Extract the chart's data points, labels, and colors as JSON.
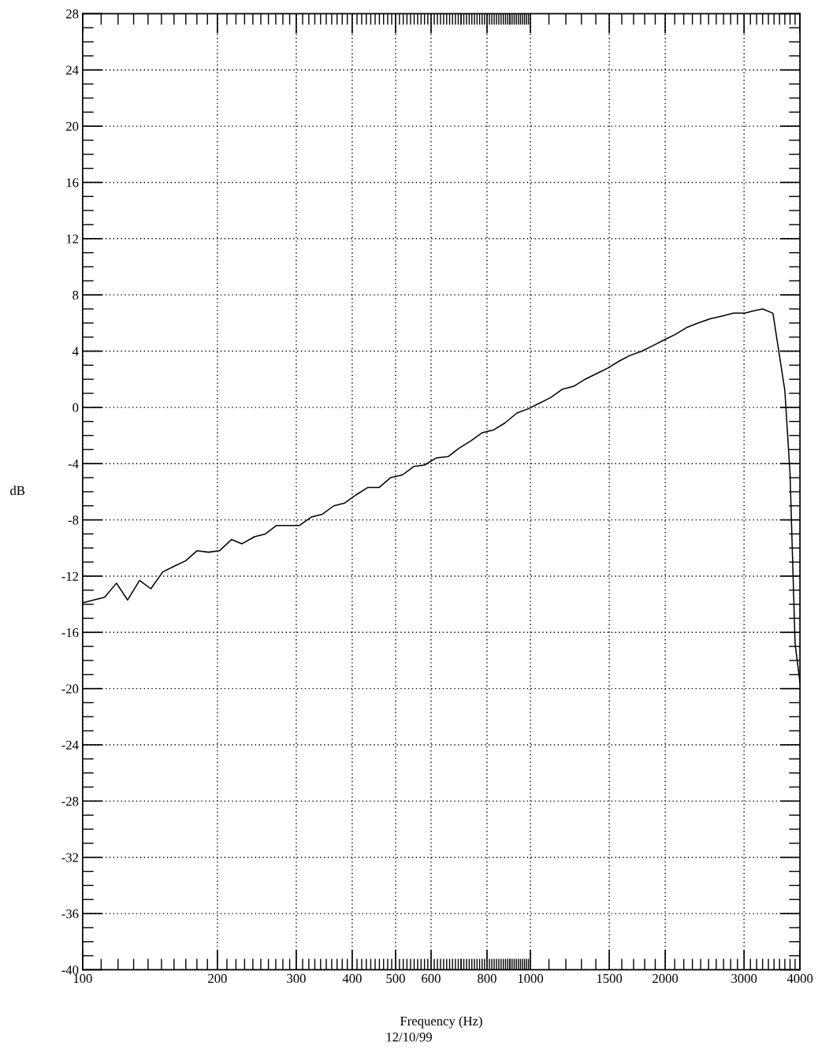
{
  "chart_data": {
    "type": "line",
    "xlabel": "Frequency (Hz)",
    "ylabel": "dB",
    "annotations": [
      "12/10/99"
    ],
    "log": "x",
    "grid": true,
    "marker": "none",
    "line_style": "solid",
    "xlim": [
      100,
      4000
    ],
    "ylim": [
      -40,
      28
    ],
    "xticks": [
      100,
      200,
      300,
      400,
      500,
      600,
      800,
      1000,
      1500,
      2000,
      3000,
      4000
    ],
    "yticks": [
      -40,
      -36,
      -32,
      -28,
      -24,
      -20,
      -16,
      -12,
      -8,
      -4,
      0,
      4,
      8,
      12,
      16,
      20,
      24,
      28
    ],
    "series": [
      {
        "color": "#000000",
        "x": [
          100,
          112,
          119,
          126,
          134,
          142,
          151,
          160,
          170,
          180,
          191,
          202,
          215,
          227,
          242,
          256,
          271,
          288,
          305,
          324,
          343,
          364,
          385,
          409,
          433,
          459,
          487,
          518,
          549,
          580,
          616,
          655,
          693,
          735,
          781,
          828,
          878,
          933,
          989,
          1048,
          1110,
          1180,
          1250,
          1325,
          1405,
          1490,
          1580,
          1670,
          1775,
          1880,
          1990,
          2110,
          2240,
          2370,
          2520,
          2680,
          2840,
          3010,
          3190,
          3300,
          3480,
          3700,
          3800,
          3900,
          4000
        ],
        "values": [
          -13.9,
          -13.5,
          -12.5,
          -13.7,
          -12.3,
          -12.9,
          -11.7,
          -11.3,
          -10.9,
          -10.2,
          -10.3,
          -10.2,
          -9.4,
          -9.7,
          -9.2,
          -9.0,
          -8.4,
          -8.4,
          -8.4,
          -7.8,
          -7.6,
          -7.0,
          -6.8,
          -6.2,
          -5.7,
          -5.7,
          -5.0,
          -4.8,
          -4.2,
          -4.1,
          -3.6,
          -3.5,
          -2.9,
          -2.4,
          -1.8,
          -1.6,
          -1.1,
          -0.4,
          -0.1,
          0.3,
          0.7,
          1.3,
          1.5,
          2.0,
          2.4,
          2.8,
          3.3,
          3.7,
          4.0,
          4.4,
          4.8,
          5.2,
          5.7,
          6.0,
          6.3,
          6.5,
          6.7,
          6.7,
          6.9,
          7.0,
          6.7,
          1.2,
          -4.7,
          -16.8,
          -19.6
        ]
      }
    ]
  }
}
